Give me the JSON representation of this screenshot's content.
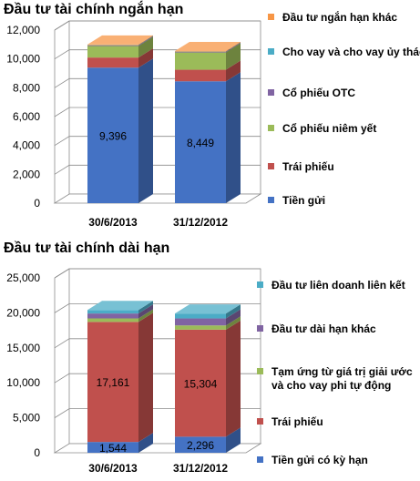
{
  "chart_data": [
    {
      "type": "stacked_bar_3d",
      "title": "Đầu tư tài chính ngắn hạn",
      "categories": [
        "30/6/2013",
        "31/12/2012"
      ],
      "ylim": [
        0,
        12000
      ],
      "yticks": [
        "0",
        "2,000",
        "4,000",
        "6,000",
        "8,000",
        "10,000",
        "12,000"
      ],
      "grid": true,
      "legend_position": "right",
      "series": [
        {
          "name": "Tiền gửi",
          "color": "#4472C4",
          "values": [
            9396,
            8449
          ],
          "labels": [
            "9,396",
            "8,449"
          ]
        },
        {
          "name": "Trái phiếu",
          "color": "#C0504D",
          "values": [
            700,
            800
          ],
          "labels": [
            "",
            ""
          ]
        },
        {
          "name": "Cổ phiếu niêm yết",
          "color": "#9BBB59",
          "values": [
            800,
            1200
          ],
          "labels": [
            "",
            ""
          ]
        },
        {
          "name": "Cổ phiếu OTC",
          "color": "#8064A2",
          "values": [
            40,
            40
          ],
          "labels": [
            "",
            ""
          ]
        },
        {
          "name": "Cho vay và cho vay ủy thác",
          "color": "#4BACC6",
          "values": [
            20,
            20
          ],
          "labels": [
            "",
            ""
          ]
        },
        {
          "name": "Đầu tư ngắn hạn khác",
          "color": "#F79646",
          "values": [
            40,
            40
          ],
          "labels": [
            "",
            ""
          ]
        }
      ]
    },
    {
      "type": "stacked_bar_3d",
      "title": "Đầu tư tài chính dài hạn",
      "categories": [
        "30/6/2013",
        "31/12/2012"
      ],
      "ylim": [
        0,
        25000
      ],
      "yticks": [
        "0",
        "5,000",
        "10,000",
        "15,000",
        "20,000",
        "25,000"
      ],
      "grid": true,
      "legend_position": "right",
      "series": [
        {
          "name": "Tiền gửi có kỳ hạn",
          "color": "#4472C4",
          "values": [
            1544,
            2296
          ],
          "labels": [
            "1,544",
            "2,296"
          ]
        },
        {
          "name": "Trái phiếu",
          "color": "#C0504D",
          "values": [
            17161,
            15304
          ],
          "labels": [
            "17,161",
            "15,304"
          ]
        },
        {
          "name": "Tạm ứng từ giá trị giải ước và cho vay phi tự động",
          "color": "#9BBB59",
          "values": [
            500,
            600
          ],
          "labels": [
            "",
            ""
          ]
        },
        {
          "name": "Đầu tư dài hạn khác",
          "color": "#8064A2",
          "values": [
            700,
            1000
          ],
          "labels": [
            "",
            ""
          ]
        },
        {
          "name": "Đầu tư liên doanh liên kết",
          "color": "#4BACC6",
          "values": [
            500,
            700
          ],
          "labels": [
            "",
            ""
          ]
        }
      ]
    }
  ]
}
